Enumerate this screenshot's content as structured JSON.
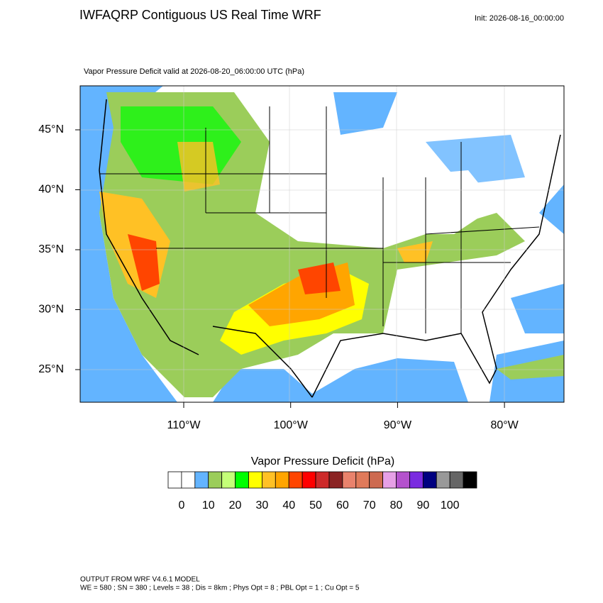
{
  "header": {
    "title": "IWFAQRP Contiguous US Real Time WRF",
    "init": "Init: 2026-08-16_00:00:00"
  },
  "map": {
    "subtitle": "Vapor Pressure Deficit valid at 2026-08-20_06:00:00 UTC   (hPa)",
    "lat_labels": [
      "45°N",
      "40°N",
      "35°N",
      "30°N",
      "25°N"
    ],
    "lon_labels": [
      "110°W",
      "100°W",
      "90°W",
      "80°W"
    ]
  },
  "colorbar": {
    "title": "Vapor Pressure Deficit  (hPa)",
    "colors": [
      "#ffffff",
      "#ffffff",
      "#63b4ff",
      "#9bcd5a",
      "#c4ff78",
      "#00ff00",
      "#ffff00",
      "#ffc125",
      "#ffa500",
      "#ff4500",
      "#ff0000",
      "#cd2a2a",
      "#8b2323",
      "#e9826c",
      "#e07a5a",
      "#cd6a50",
      "#e6a0e6",
      "#b452cd",
      "#7a2be0",
      "#000080",
      "#999999",
      "#666666",
      "#000000"
    ],
    "labels": [
      "0",
      "10",
      "20",
      "30",
      "40",
      "50",
      "60",
      "70",
      "80",
      "90",
      "100"
    ]
  },
  "footer": {
    "line1": "OUTPUT FROM WRF V4.6.1 MODEL",
    "line2": "WE = 580 ; SN = 380 ; Levels = 38 ; Dis = 8km ; Phys Opt = 8 ; PBL Opt = 1 ; Cu Opt = 5"
  }
}
